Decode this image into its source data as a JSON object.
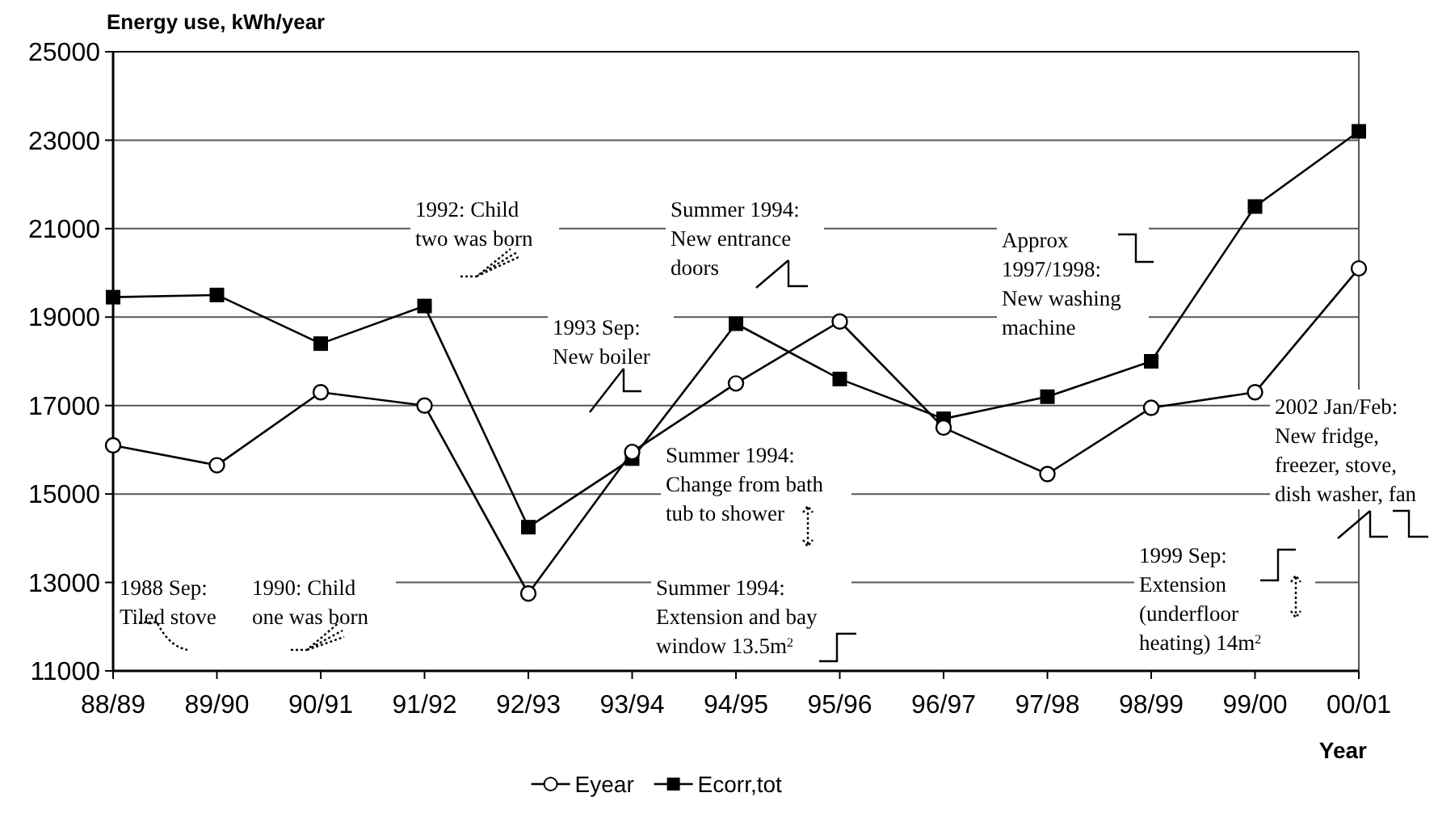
{
  "chart_data": {
    "type": "line",
    "title": "Energy use, kWh/year",
    "xlabel": "Year",
    "categories": [
      "88/89",
      "89/90",
      "90/91",
      "91/92",
      "92/93",
      "93/94",
      "94/95",
      "95/96",
      "96/97",
      "97/98",
      "98/99",
      "99/00",
      "00/01"
    ],
    "series": [
      {
        "name": "Eyear",
        "color": "#000000",
        "marker": "circle",
        "values": [
          16100,
          15650,
          17300,
          17000,
          12750,
          15950,
          17500,
          18900,
          16500,
          15450,
          16950,
          17300,
          20100
        ]
      },
      {
        "name": "Ecorr,tot",
        "color": "#000000",
        "marker": "square",
        "values": [
          19450,
          19500,
          18400,
          19250,
          14250,
          15800,
          18850,
          17600,
          16700,
          17200,
          18000,
          21500,
          23200
        ]
      }
    ],
    "ylim": [
      11000,
      25000
    ],
    "yticks": [
      11000,
      13000,
      15000,
      17000,
      19000,
      21000,
      23000,
      25000
    ],
    "grid": "y",
    "legend": "bottom",
    "annotations": [
      "1988 Sep:\nTiled stove",
      "1990: Child\none was born",
      "1992: Child\ntwo was born",
      "1993 Sep:\nNew boiler",
      "Summer 1994:\nNew entrance\ndoors",
      "Summer 1994:\nChange from bath\ntub to shower",
      "Summer 1994:\nExtension and bay\nwindow 13.5m$^{2}$",
      "Approx\n1997/1998:\nNew washing\nmachine",
      "1999 Sep:\nExtension\n(underfloor\nheating) 14m$^{2}$",
      "2002 Jan/Feb:\nNew fridge,\nfreezer, stove,\ndish washer, fan"
    ]
  }
}
